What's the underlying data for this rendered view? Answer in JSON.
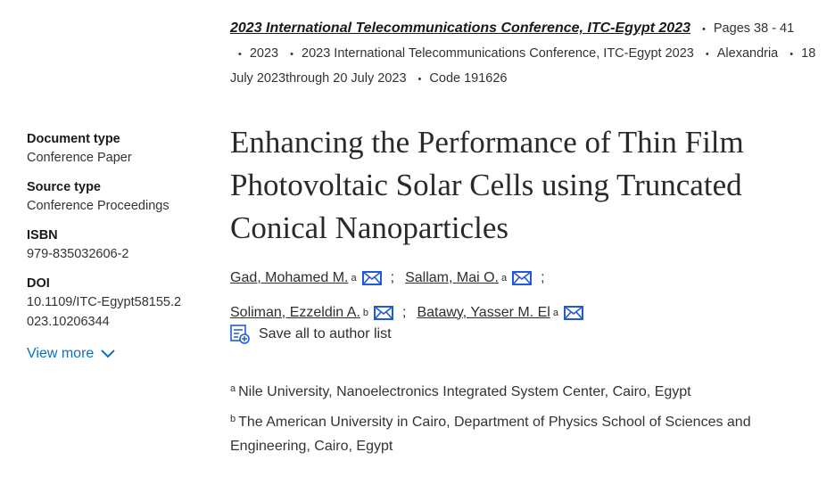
{
  "source": {
    "title": "2023 International Telecommunications Conference, ITC-Egypt 2023",
    "pages": "Pages 38 - 41",
    "year": "2023",
    "conference": "2023 International Telecommunications Conference, ITC-Egypt 2023",
    "location": "Alexandria",
    "dates": "18 July 2023through 20 July 2023",
    "code": "Code 191626"
  },
  "sidebar": {
    "fields": [
      {
        "label": "Document type",
        "value": "Conference Paper"
      },
      {
        "label": "Source type",
        "value": "Conference Proceedings"
      },
      {
        "label": "ISBN",
        "value": "979-835032606-2"
      },
      {
        "label": "DOI",
        "value": "10.1109/ITC-Egypt58155.2023.10206344"
      }
    ],
    "view_more": "View more"
  },
  "document": {
    "title": "Enhancing the Performance of Thin Film Photovoltaic Solar Cells using Truncated Conical Nanoparticles",
    "authors": [
      {
        "name": "Gad, Mohamed M.",
        "affiliation": "a"
      },
      {
        "name": "Sallam, Mai O.",
        "affiliation": "a"
      },
      {
        "name": "Soliman, Ezzeldin A.",
        "affiliation": "b"
      },
      {
        "name": "Batawy, Yasser M. El",
        "affiliation": "a"
      }
    ],
    "separator": ";",
    "save_all": "Save all to author list",
    "affiliations": [
      {
        "key": "a",
        "text": "Nile University, Nanoelectronics Integrated System Center, Cairo, Egypt"
      },
      {
        "key": "b",
        "text": "The American University in Cairo, Department of Physics School of Sciences and Engineering, Cairo, Egypt"
      }
    ]
  }
}
